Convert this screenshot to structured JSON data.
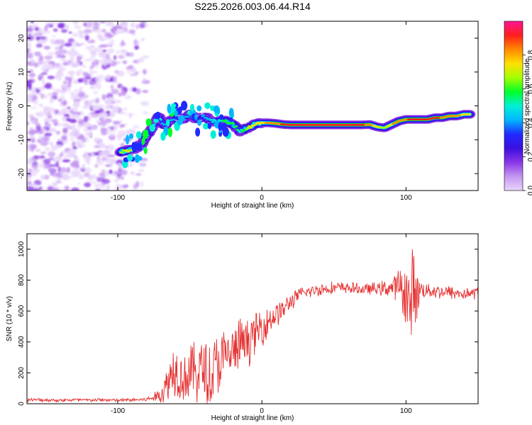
{
  "title": "S225.2026.003.06.44.R14",
  "colors": {
    "ramp": [
      "#ffffff",
      "#e8d6fb",
      "#c496f2",
      "#8a36e6",
      "#3b0fe0",
      "#1f2bff",
      "#00b7ff",
      "#00f0d6",
      "#00ff2a",
      "#a6ff00",
      "#ffe000",
      "#ff8a00",
      "#ff1e1e",
      "#ff1493"
    ],
    "line": "#e53030",
    "axis": "#000000"
  },
  "chart_data": [
    {
      "type": "heatmap",
      "xlabel": "Height of straight line (km)",
      "ylabel": "Frequency (Hz)",
      "xlim": [
        -163,
        150
      ],
      "ylim": [
        -25,
        25
      ],
      "xticks": [
        -100,
        0,
        100
      ],
      "xtick_labels": [
        "-100",
        "0",
        "100"
      ],
      "yticks": [
        -20,
        -10,
        0,
        10,
        20
      ],
      "ytick_labels": [
        "-20",
        "-10",
        "0",
        "10",
        "20"
      ],
      "colorbar": {
        "label": "Normalized spectral amplitude",
        "range": [
          0,
          1
        ],
        "ticks": [
          0.0,
          0.2,
          0.4,
          0.6,
          0.8
        ],
        "tick_labels": [
          "0.0",
          "0.2",
          "0.4",
          "0.6",
          "0.8"
        ]
      },
      "noise_region_x": [
        -163,
        -80
      ],
      "ridge": {
        "x": [
          -98,
          -93,
          -88,
          -84,
          -80,
          -76,
          -72,
          -68,
          -64,
          -60,
          -55,
          -50,
          -45,
          -40,
          -35,
          -30,
          -25,
          -20,
          -15,
          -10,
          -5,
          0,
          5,
          10,
          15,
          20,
          30,
          40,
          50,
          60,
          70,
          75,
          80,
          85,
          90,
          95,
          100,
          105,
          110,
          115,
          120,
          125,
          130,
          135,
          140,
          145
        ],
        "y": [
          -13.5,
          -13.2,
          -12.5,
          -11.5,
          -9,
          -6.5,
          -3,
          -6,
          -4.5,
          -3.5,
          -4,
          -2.5,
          -4,
          -3,
          -4.5,
          -4.5,
          -4.5,
          -5.5,
          -7.5,
          -6.5,
          -5.5,
          -5,
          -5,
          -5.2,
          -5.5,
          -5.6,
          -5.6,
          -5.6,
          -5.6,
          -5.6,
          -5.6,
          -5.5,
          -6.2,
          -6.5,
          -5.5,
          -4.5,
          -4,
          -4,
          -4,
          -4,
          -3.5,
          -3.5,
          -3,
          -3,
          -2.5,
          -2.5
        ],
        "amplitude": [
          0.7,
          0.75,
          0.6,
          0.5,
          0.45,
          0.5,
          0.6,
          0.45,
          0.5,
          0.4,
          0.45,
          0.5,
          0.35,
          0.45,
          0.5,
          0.55,
          0.6,
          0.65,
          0.55,
          0.7,
          0.8,
          0.8,
          0.82,
          0.85,
          0.9,
          0.9,
          0.92,
          0.92,
          0.92,
          0.92,
          0.9,
          0.85,
          0.75,
          0.7,
          0.8,
          0.85,
          0.88,
          0.9,
          0.92,
          0.92,
          0.9,
          0.88,
          0.85,
          0.82,
          0.8,
          0.78
        ]
      }
    },
    {
      "type": "line",
      "xlabel": "Height of straight line (km)",
      "ylabel": "SNR (10 * v/v)",
      "xlim": [
        -163,
        150
      ],
      "ylim": [
        0,
        1100
      ],
      "xticks": [
        -100,
        0,
        100
      ],
      "xtick_labels": [
        "-100",
        "0",
        "100"
      ],
      "yticks": [
        0,
        200,
        400,
        600,
        800,
        1000
      ],
      "ytick_labels": [
        "0",
        "200",
        "400",
        "600",
        "800",
        "1000"
      ],
      "series": [
        {
          "x": [
            -163,
            -150,
            -140,
            -130,
            -120,
            -110,
            -100,
            -90,
            -80,
            -75,
            -70,
            -66,
            -63,
            -60,
            -57,
            -54,
            -50,
            -45,
            -40,
            -35,
            -30,
            -25,
            -20,
            -15,
            -10,
            -5,
            0,
            5,
            10,
            15,
            20,
            25,
            30,
            35,
            40,
            50,
            60,
            70,
            80,
            90,
            95,
            100,
            103,
            105,
            107,
            110,
            120,
            130,
            140,
            150
          ],
          "y": [
            25,
            25,
            22,
            25,
            23,
            25,
            22,
            25,
            28,
            40,
            60,
            120,
            200,
            240,
            190,
            170,
            200,
            210,
            230,
            200,
            260,
            300,
            330,
            380,
            400,
            450,
            500,
            540,
            580,
            610,
            660,
            700,
            720,
            730,
            740,
            750,
            750,
            740,
            745,
            750,
            760,
            720,
            600,
            760,
            710,
            740,
            730,
            720,
            710,
            720
          ],
          "volatility": [
            10,
            12,
            10,
            12,
            10,
            12,
            10,
            12,
            14,
            25,
            60,
            120,
            180,
            170,
            160,
            160,
            190,
            200,
            210,
            220,
            210,
            180,
            170,
            170,
            150,
            130,
            120,
            100,
            80,
            70,
            55,
            45,
            40,
            40,
            40,
            40,
            35,
            35,
            40,
            60,
            110,
            190,
            320,
            250,
            180,
            60,
            45,
            45,
            40,
            40
          ]
        }
      ]
    }
  ]
}
